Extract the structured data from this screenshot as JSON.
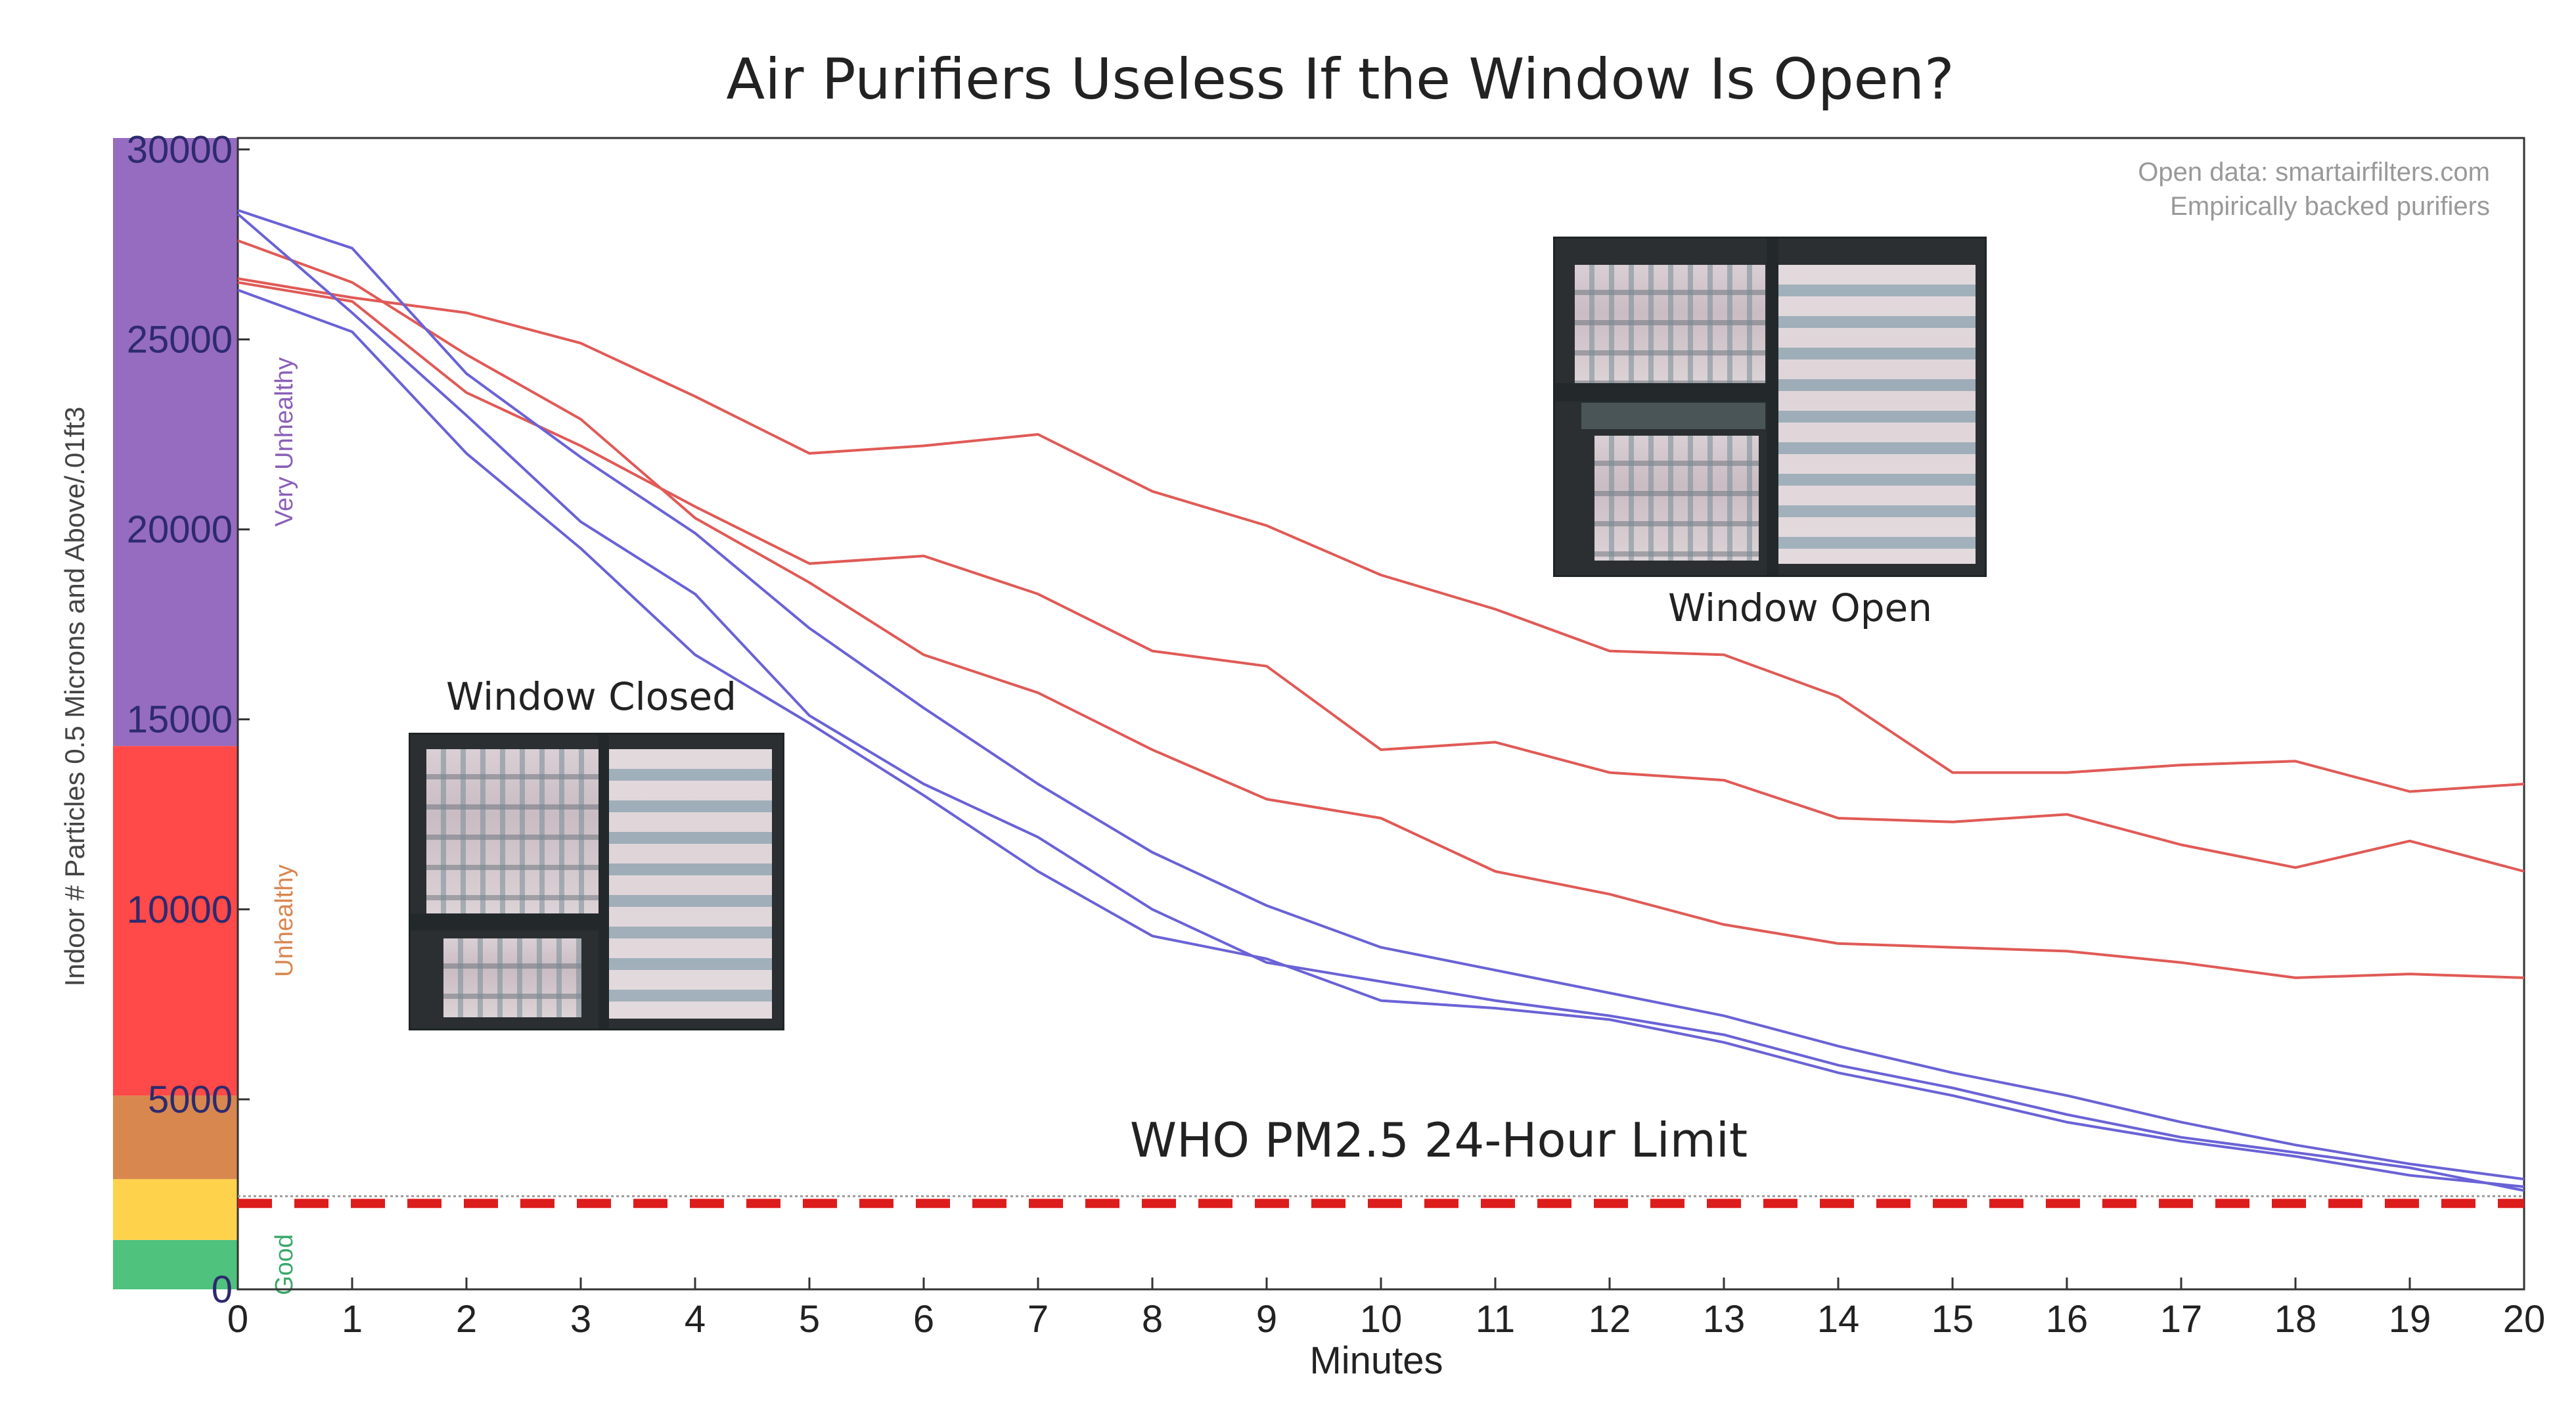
{
  "chart_data": {
    "type": "line",
    "title": "Air Purifiers Useless If the Window Is Open?",
    "xlabel": "Minutes",
    "ylabel": "Indoor # Particles 0.5 Microns and Above/.01ft3",
    "xlim": [
      0,
      20
    ],
    "ylim": [
      0,
      30000
    ],
    "x_ticks": [
      "0",
      "1",
      "2",
      "3",
      "4",
      "5",
      "6",
      "7",
      "8",
      "9",
      "10",
      "11",
      "12",
      "13",
      "14",
      "15",
      "16",
      "17",
      "18",
      "19",
      "20"
    ],
    "y_ticks": [
      "0",
      "5000",
      "10000",
      "15000",
      "20000",
      "25000",
      "30000"
    ],
    "x": [
      0,
      1,
      2,
      3,
      4,
      5,
      6,
      7,
      8,
      9,
      10,
      11,
      12,
      13,
      14,
      15,
      16,
      17,
      18,
      19,
      20
    ],
    "series": [
      {
        "group": "open",
        "color": "#e05a56",
        "values": [
          27600,
          26500,
          24600,
          22900,
          20300,
          18600,
          16700,
          15700,
          14200,
          12900,
          12400,
          11000,
          10400,
          9600,
          9100,
          9000,
          8900,
          8600,
          8200,
          8300,
          8200
        ]
      },
      {
        "group": "open",
        "color": "#e05a56",
        "values": [
          26600,
          26100,
          25700,
          24900,
          23500,
          22000,
          22200,
          22500,
          21000,
          20100,
          18800,
          17900,
          16800,
          16700,
          15600,
          13600,
          13600,
          13800,
          13900,
          13100,
          13300
        ]
      },
      {
        "group": "open",
        "color": "#e05a56",
        "values": [
          26500,
          26000,
          23600,
          22200,
          20600,
          19100,
          19300,
          18300,
          16800,
          16400,
          14200,
          14400,
          13600,
          13400,
          12400,
          12300,
          12500,
          11700,
          11100,
          11800,
          11000
        ]
      },
      {
        "group": "closed",
        "color": "#6a62d6",
        "values": [
          28400,
          27400,
          24100,
          21900,
          19900,
          17400,
          15300,
          13300,
          11500,
          10100,
          9000,
          8400,
          7800,
          7200,
          6400,
          5700,
          5100,
          4400,
          3800,
          3300,
          2900
        ]
      },
      {
        "group": "closed",
        "color": "#6a62d6",
        "values": [
          28300,
          25700,
          23000,
          20200,
          18300,
          15100,
          13300,
          11900,
          10000,
          8600,
          8100,
          7600,
          7200,
          6700,
          5900,
          5300,
          4600,
          4000,
          3600,
          3200,
          2600
        ]
      },
      {
        "group": "closed",
        "color": "#6a62d6",
        "values": [
          26300,
          25200,
          22000,
          19500,
          16700,
          14900,
          13000,
          11000,
          9300,
          8700,
          7600,
          7400,
          7100,
          6500,
          5700,
          5100,
          4400,
          3900,
          3500,
          3000,
          2700
        ]
      }
    ],
    "reference_line": {
      "label": "WHO PM2.5 24-Hour Limit",
      "value": 2400,
      "color": "#dd1c1c"
    },
    "aqi_bands": [
      {
        "from": 0,
        "to": 1300,
        "color": "#4fc27e",
        "label": "Good",
        "label_color": "#3aa86a"
      },
      {
        "from": 1300,
        "to": 2900,
        "color": "#ffd24c",
        "label": "",
        "label_color": ""
      },
      {
        "from": 2900,
        "to": 5100,
        "color": "#d8884e",
        "label": "",
        "label_color": ""
      },
      {
        "from": 5100,
        "to": 14300,
        "color": "#ff4a49",
        "label": "Unhealthy",
        "label_color": "#d9864f"
      },
      {
        "from": 14300,
        "to": 30300,
        "color": "#966cc0",
        "label": "Very Unhealthy",
        "label_color": "#8a5fb8"
      }
    ],
    "source_lines": [
      "Open data: smartairfilters.com",
      "Empirically backed purifiers"
    ],
    "annotations": {
      "window_closed": "Window Closed",
      "window_open": "Window Open"
    },
    "grid": false
  }
}
